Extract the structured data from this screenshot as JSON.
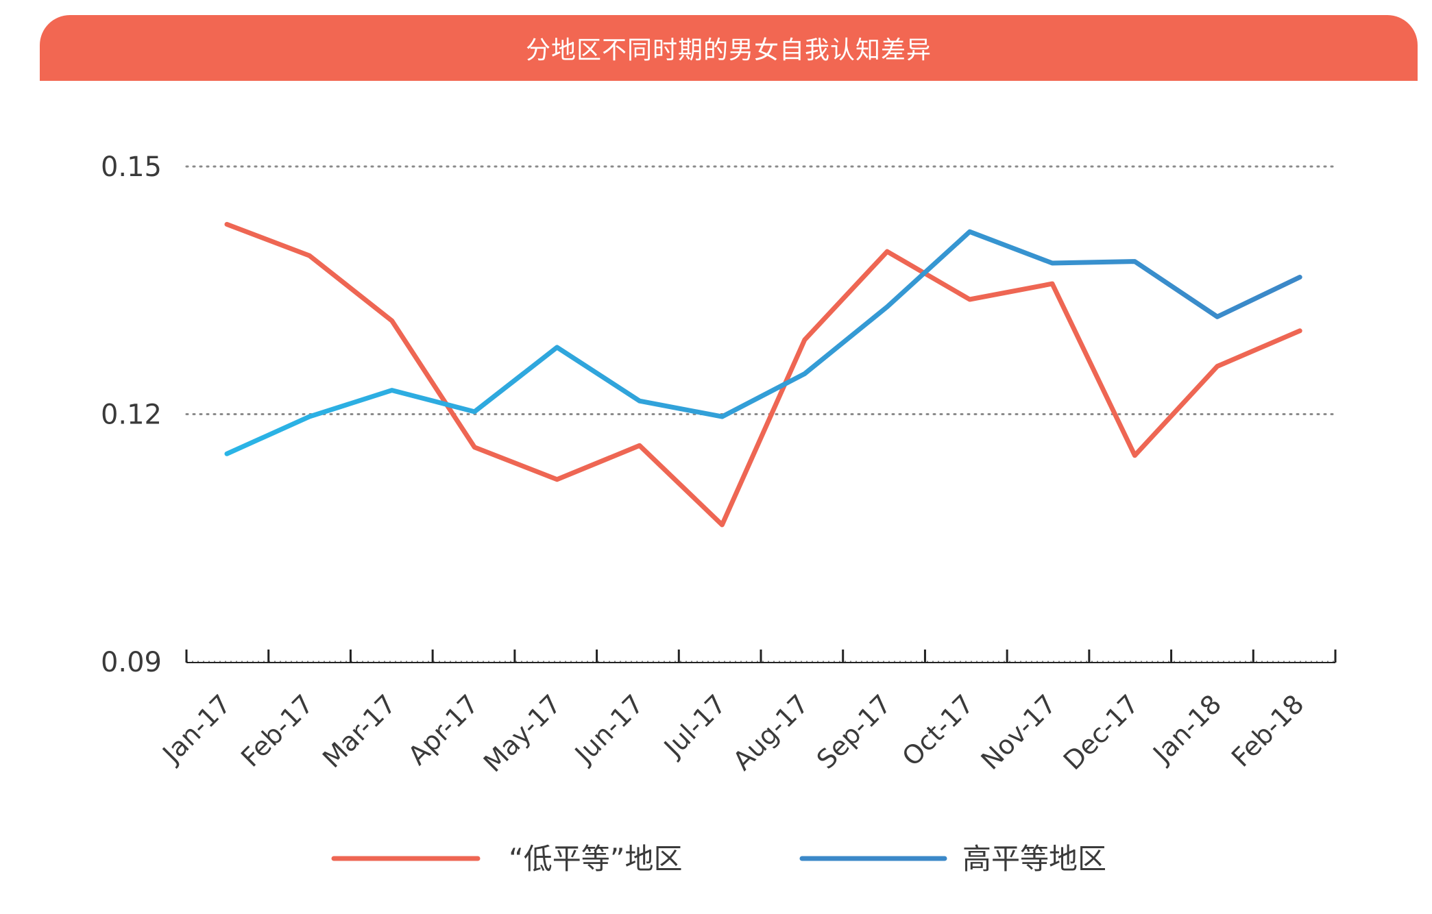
{
  "chart_data": {
    "type": "line",
    "title": "分地区不同时期的男女自我认知差异",
    "categories": [
      "Jan-17",
      "Feb-17",
      "Mar-17",
      "Apr-17",
      "May-17",
      "Jun-17",
      "Jul-17",
      "Aug-17",
      "Sep-17",
      "Oct-17",
      "Nov-17",
      "Dec-17",
      "Jan-18",
      "Feb-18"
    ],
    "series": [
      {
        "name": "“低平等”地区",
        "color": "#ee6653",
        "values": [
          0.143,
          0.1392,
          0.1313,
          0.116,
          0.1121,
          0.1162,
          0.1066,
          0.129,
          0.1397,
          0.1339,
          0.1358,
          0.115,
          0.1258,
          0.1301
        ]
      },
      {
        "name": "高平等地区",
        "color_start": "#2ab4e6",
        "color_end": "#3b88c8",
        "values": [
          0.1152,
          0.1197,
          0.1229,
          0.1203,
          0.1281,
          0.1216,
          0.1197,
          0.1249,
          0.133,
          0.1421,
          0.1383,
          0.1385,
          0.1318,
          0.1366
        ]
      }
    ],
    "yticks": [
      "0.15",
      "0.12",
      "0.09"
    ],
    "ytick_values": [
      0.15,
      0.12,
      0.09
    ],
    "ylim": [
      0.09,
      0.15
    ],
    "grid": "dotted-horizontal",
    "legend_position": "bottom"
  }
}
